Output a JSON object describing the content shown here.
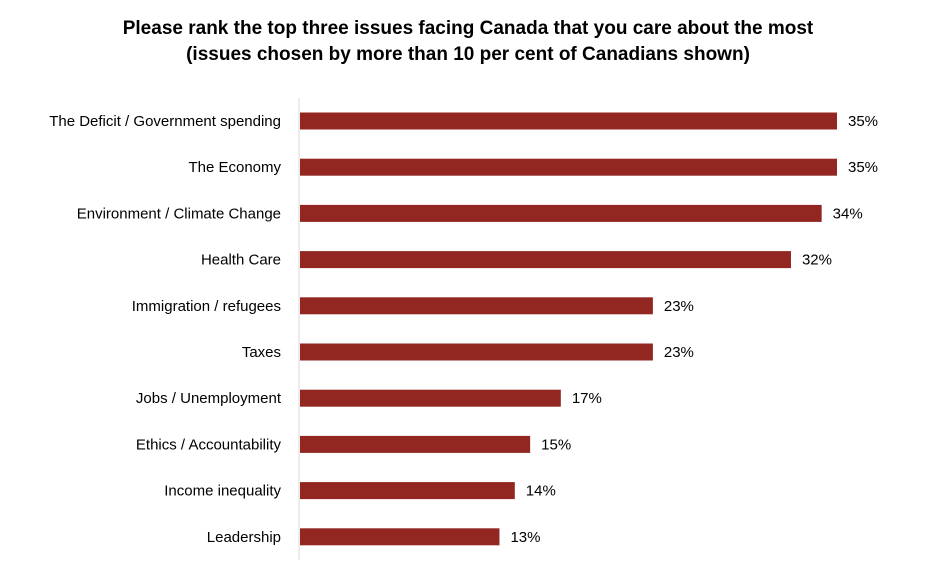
{
  "chart_data": {
    "type": "bar",
    "orientation": "horizontal",
    "title": "Please rank the top three issues facing Canada that you care about the most",
    "subtitle": "(issues chosen by more than 10 per cent of Canadians shown)",
    "xlabel": "",
    "ylabel": "",
    "xlim": [
      0,
      35
    ],
    "grid": false,
    "legend": "none",
    "bar_color": "#922722",
    "categories": [
      "The Deficit / Government spending",
      "The Economy",
      "Environment / Climate Change",
      "Health Care",
      "Immigration / refugees",
      "Taxes",
      "Jobs / Unemployment",
      "Ethics / Accountability",
      "Income inequality",
      "Leadership"
    ],
    "values": [
      35,
      35,
      34,
      32,
      23,
      23,
      17,
      15,
      14,
      13
    ],
    "value_labels": [
      "35%",
      "35%",
      "34%",
      "32%",
      "23%",
      "23%",
      "17%",
      "15%",
      "14%",
      "13%"
    ]
  }
}
